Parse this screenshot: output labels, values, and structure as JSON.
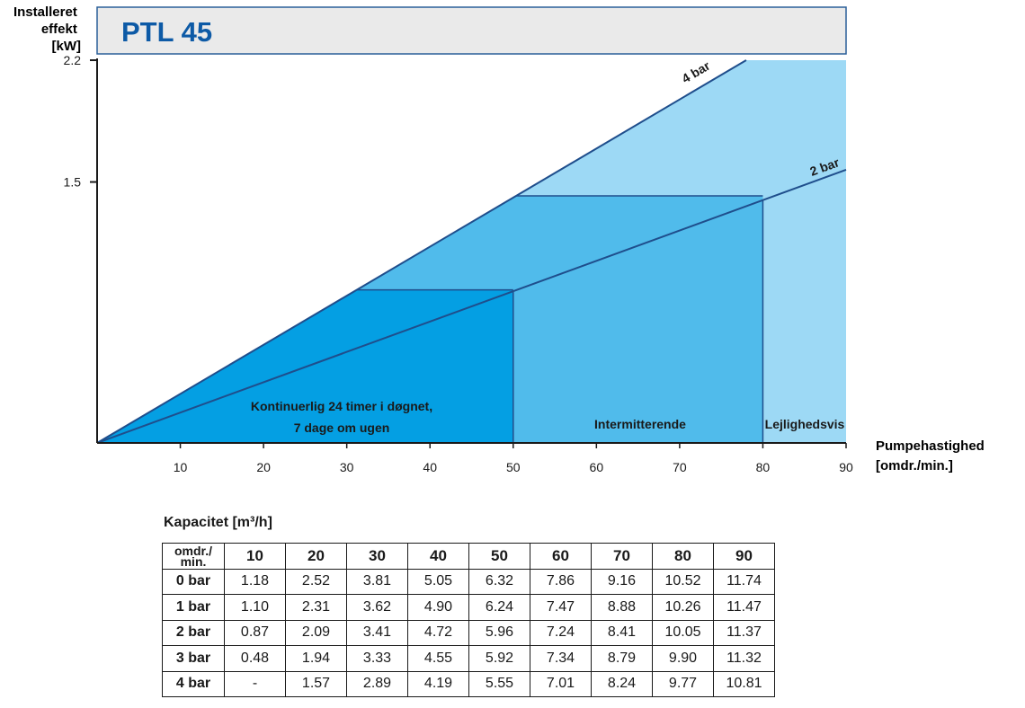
{
  "title": "PTL 45",
  "chart_data": {
    "type": "area",
    "title": "PTL 45",
    "ylabel": [
      "Installeret",
      "effekt",
      "[kW]"
    ],
    "xlabel": [
      "Pumpehastighed",
      "[omdr./min.]"
    ],
    "xlim": [
      0,
      90
    ],
    "ylim": [
      0,
      2.2
    ],
    "x_ticks": [
      10,
      20,
      30,
      40,
      50,
      60,
      70,
      80,
      90
    ],
    "y_ticks": [
      1.5,
      2.2
    ],
    "y_tick_labels": [
      "1.5",
      "2.2"
    ],
    "series": [
      {
        "name": "4 bar",
        "x": [
          0,
          78
        ],
        "y": [
          0,
          2.2
        ]
      },
      {
        "name": "2 bar",
        "x": [
          0,
          90
        ],
        "y": [
          0,
          1.57
        ]
      }
    ],
    "zones": [
      {
        "label": [
          "Kontinuerlig 24 timer i døgnet,",
          "7 dage om ugen"
        ],
        "x_range": [
          0,
          50
        ],
        "upper_y": 0.88,
        "color": "#049fe3"
      },
      {
        "label": [
          "Intermitterende"
        ],
        "x_range": [
          50,
          80
        ],
        "upper_y": 1.42,
        "color": "#50bbeb"
      },
      {
        "label": [
          "Lejlighedsvis"
        ],
        "x_range": [
          80,
          90
        ],
        "upper_y": 2.2,
        "color": "#9dd9f5"
      }
    ],
    "colors": {
      "line": "#1f4e8c",
      "axis": "#1a1a1a",
      "title_bg": "#eaeaea",
      "title_text": "#0d5aa6"
    }
  },
  "capacity": {
    "title": "Kapacitet [m³/h]",
    "corner": [
      "omdr./",
      "min."
    ],
    "columns": [
      "10",
      "20",
      "30",
      "40",
      "50",
      "60",
      "70",
      "80",
      "90"
    ],
    "rows": [
      {
        "label": "0 bar",
        "values": [
          "1.18",
          "2.52",
          "3.81",
          "5.05",
          "6.32",
          "7.86",
          "9.16",
          "10.52",
          "11.74"
        ]
      },
      {
        "label": "1 bar",
        "values": [
          "1.10",
          "2.31",
          "3.62",
          "4.90",
          "6.24",
          "7.47",
          "8.88",
          "10.26",
          "11.47"
        ]
      },
      {
        "label": "2 bar",
        "values": [
          "0.87",
          "2.09",
          "3.41",
          "4.72",
          "5.96",
          "7.24",
          "8.41",
          "10.05",
          "11.37"
        ]
      },
      {
        "label": "3 bar",
        "values": [
          "0.48",
          "1.94",
          "3.33",
          "4.55",
          "5.92",
          "7.34",
          "8.79",
          "9.90",
          "11.32"
        ]
      },
      {
        "label": "4 bar",
        "values": [
          "-",
          "1.57",
          "2.89",
          "4.19",
          "5.55",
          "7.01",
          "8.24",
          "9.77",
          "10.81"
        ]
      }
    ]
  }
}
